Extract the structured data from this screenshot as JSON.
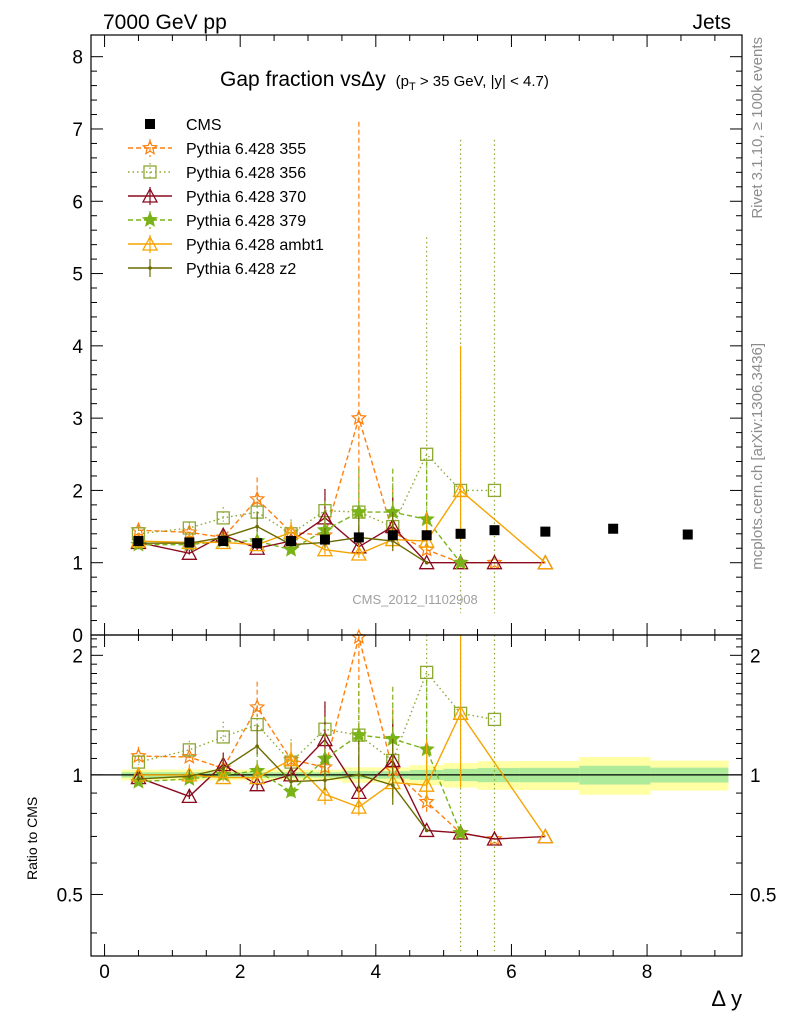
{
  "header": {
    "left": "7000 GeV pp",
    "right": "Jets",
    "side_top": "Rivet 3.1.10, ≥ 100k events",
    "side_bottom": "mcplots.cern.ch [arXiv:1306.3436]"
  },
  "chart_data": {
    "type": "scatter",
    "title": "Gap fraction vsΔy",
    "title_sub": "(p",
    "title_sub_idx": "T",
    "title_sub_rest": " > 35 GeV, |y| < 4.7)",
    "watermark": "CMS_2012_I1102908",
    "xlabel": "Δ y",
    "ylabel_ratio": "Ratio to CMS",
    "xlim": [
      -0.2,
      9.4
    ],
    "ylim_main": [
      0,
      8.3
    ],
    "ylim_ratio": [
      0.35,
      2.25
    ],
    "x_ticks": [
      0,
      2,
      4,
      6,
      8
    ],
    "x_tick_labels": [
      "0",
      "2",
      "4",
      "6",
      "8"
    ],
    "y_ticks_main": [
      0,
      1,
      2,
      3,
      4,
      5,
      6,
      7,
      8
    ],
    "y_tick_labels_main": [
      "0",
      "1",
      "2",
      "3",
      "4",
      "5",
      "6",
      "7",
      "8"
    ],
    "y_ticks_ratio": [
      0.5,
      1,
      2
    ],
    "y_tick_labels_ratio": [
      "0.5",
      "1",
      "2"
    ],
    "legend_position": "top-left",
    "data": {
      "name": "CMS",
      "x": [
        0.5,
        1.25,
        1.75,
        2.25,
        2.75,
        3.25,
        3.75,
        4.25,
        4.75,
        5.25,
        5.75,
        6.5,
        7.5,
        8.6
      ],
      "y": [
        1.3,
        1.28,
        1.3,
        1.27,
        1.3,
        1.32,
        1.35,
        1.38,
        1.38,
        1.4,
        1.45,
        1.43,
        1.47,
        1.39
      ],
      "band": [
        0.02,
        0.02,
        0.02,
        0.02,
        0.02,
        0.02,
        0.03,
        0.03,
        0.04,
        0.05,
        0.06,
        0.06,
        0.08,
        0.06
      ]
    },
    "series": [
      {
        "name": "Pythia 6.428 355",
        "color": "#ff7f0e",
        "marker": "star-open",
        "dash": "5,3",
        "x": [
          0.5,
          1.25,
          1.75,
          2.25,
          2.75,
          3.25,
          3.75,
          4.25,
          4.75,
          5.25,
          5.75
        ],
        "y": [
          1.45,
          1.42,
          1.35,
          1.88,
          1.42,
          1.38,
          3.0,
          1.42,
          1.18,
          1.0,
          1.0
        ],
        "err": [
          0.08,
          0.1,
          0.1,
          0.3,
          0.15,
          0.3,
          4.1,
          0.6,
          0.2,
          0.0,
          0.0
        ]
      },
      {
        "name": "Pythia 6.428 356",
        "color": "#8ca832",
        "marker": "square-open",
        "dash": "1.5,3",
        "x": [
          0.5,
          1.25,
          1.75,
          2.25,
          2.75,
          3.25,
          3.75,
          4.25,
          4.75,
          5.25,
          5.75
        ],
        "y": [
          1.4,
          1.48,
          1.62,
          1.7,
          1.4,
          1.72,
          1.7,
          1.5,
          2.5,
          2.0,
          2.0
        ],
        "err": [
          0.06,
          0.08,
          0.15,
          0.2,
          0.2,
          0.3,
          0.4,
          0.6,
          3.0,
          4.85,
          4.85
        ]
      },
      {
        "name": "Pythia 6.428 370",
        "color": "#8b0a1e",
        "marker": "triangle-open",
        "dash": "",
        "x": [
          0.5,
          1.25,
          1.75,
          2.25,
          2.75,
          3.25,
          3.75,
          4.25,
          4.75,
          5.25,
          5.75,
          6.5
        ],
        "y": [
          1.28,
          1.13,
          1.38,
          1.2,
          1.3,
          1.62,
          1.22,
          1.5,
          1.0,
          1.0,
          1.0,
          1.0
        ],
        "err": [
          0.05,
          0.05,
          0.1,
          0.1,
          0.15,
          0.4,
          0.3,
          0.4,
          0.0,
          0.0,
          0.0,
          0.0
        ]
      },
      {
        "name": "Pythia 6.428 379",
        "color": "#7ab317",
        "marker": "star",
        "dash": "5,3",
        "x": [
          0.5,
          1.25,
          1.75,
          2.25,
          2.75,
          3.25,
          3.75,
          4.25,
          4.75,
          5.25
        ],
        "y": [
          1.25,
          1.25,
          1.3,
          1.3,
          1.18,
          1.45,
          1.7,
          1.7,
          1.6,
          1.0
        ],
        "err": [
          0.05,
          0.08,
          0.08,
          0.15,
          0.1,
          0.4,
          0.6,
          0.6,
          0.8,
          0.0
        ]
      },
      {
        "name": "Pythia 6.428 ambt1",
        "color": "#f5a300",
        "marker": "triangle-open",
        "dash": "",
        "x": [
          0.5,
          1.25,
          1.75,
          2.25,
          2.75,
          3.25,
          3.75,
          4.25,
          4.75,
          5.25,
          6.5
        ],
        "y": [
          1.3,
          1.28,
          1.28,
          1.25,
          1.42,
          1.18,
          1.12,
          1.32,
          1.3,
          2.0,
          1.0
        ],
        "err": [
          0.05,
          0.08,
          0.08,
          0.1,
          0.15,
          0.2,
          0.15,
          0.3,
          0.4,
          2.0,
          0.0
        ]
      },
      {
        "name": "Pythia 6.428 z2",
        "color": "#6b6b00",
        "marker": "dot",
        "dash": "",
        "x": [
          0.5,
          1.25,
          1.75,
          2.25,
          2.75,
          3.25,
          3.75,
          4.25,
          4.75
        ],
        "y": [
          1.27,
          1.27,
          1.35,
          1.5,
          1.25,
          1.28,
          1.35,
          1.3,
          1.0
        ],
        "err": [
          0.05,
          0.05,
          0.1,
          0.2,
          0.1,
          0.2,
          0.3,
          0.4,
          0.0
        ]
      }
    ]
  }
}
